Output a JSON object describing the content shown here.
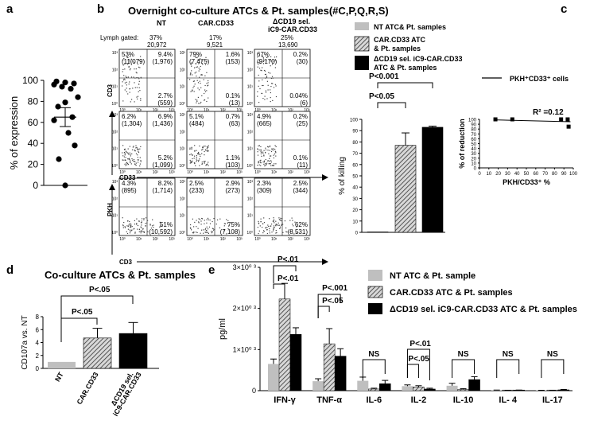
{
  "panels": {
    "a": {
      "label": "a"
    },
    "b": {
      "label": "b",
      "title": "Overnight co-culture ATCs & Pt. samples(#C,P,Q,R,S)"
    },
    "c": {
      "label": "c"
    },
    "d": {
      "label": "d",
      "title": "Co-culture ATCs & Pt. samples"
    },
    "e": {
      "label": "e"
    }
  },
  "flow": {
    "col_headers": [
      "NT",
      "CAR.CD33",
      "ΔCD19 sel.",
      "iC9-CAR.CD33"
    ],
    "gate_label": "Lymph gated:",
    "gate_pct": [
      "37%",
      "17%",
      "25%"
    ],
    "gate_counts": [
      "20,972",
      "9,521",
      "13,690"
    ],
    "row1": [
      {
        "ul": "53%",
        "ulc": "(11,079)",
        "ur": "9.4%",
        "urc": "(1,976)",
        "lr": "2.7%",
        "lrc": "(559)"
      },
      {
        "ul": "79%",
        "ulc": "(7,475)",
        "ur": "1.6%",
        "urc": "(153)",
        "lr": "0.1%",
        "lrc": "(13)"
      },
      {
        "ul": "67%",
        "ulc": "(9,170)",
        "ur": "0.2%",
        "urc": "(30)",
        "lr": "0.04%",
        "lrc": "(6)"
      }
    ],
    "row2": [
      {
        "ul": "6.2%",
        "ulc": "(1,304)",
        "ur": "6.9%",
        "urc": "(1,436)",
        "lr": "5.2%",
        "lrc": "(1,099)"
      },
      {
        "ul": "5.1%",
        "ulc": "(484)",
        "ur": "0.7%",
        "urc": "(63)",
        "lr": "1.1%",
        "lrc": "(103)"
      },
      {
        "ul": "4.9%",
        "ulc": "(665)",
        "ur": "0.2%",
        "urc": "(25)",
        "lr": "0.1%",
        "lrc": "(11)"
      }
    ],
    "row3": [
      {
        "ul": "4.3%",
        "ulc": "(895)",
        "ur": "8.2%",
        "urc": "(1,714)",
        "lr": "51%",
        "lrc": "(10,592)"
      },
      {
        "ul": "2.5%",
        "ulc": "(233)",
        "ur": "2.9%",
        "urc": "(273)",
        "lr": "75%",
        "lrc": "(7,108)"
      },
      {
        "ul": "2.3%",
        "ulc": "(309)",
        "ur": "2.5%",
        "urc": "(344)",
        "lr": "62%",
        "lrc": "(8,531)"
      }
    ],
    "axis_labels": {
      "cd3": "CD3",
      "cd33": "CD33",
      "pkh": "PKH",
      "cd3_bottom": "CD3"
    },
    "tick_labels": [
      "10⁰",
      "10¹",
      "10²",
      "10³"
    ]
  },
  "legend_b": {
    "items": [
      {
        "label": "NT ATC& Pt. samples",
        "color": "#bfbfbf",
        "hatch": false
      },
      {
        "label": "CAR.CD33 ATC & Pt. samples",
        "color": "#8c8c8c",
        "hatch": true
      },
      {
        "label": "ΔCD19 sel. iC9-CAR.CD33 ATC & Pt. samples",
        "color": "#000000",
        "hatch": false
      }
    ]
  },
  "legend_e": {
    "items": [
      {
        "label": "NT ATC & Pt. sample",
        "color": "#bfbfbf",
        "hatch": false
      },
      {
        "label": "CAR.CD33 ATC & Pt. samples",
        "color": "#8c8c8c",
        "hatch": true
      },
      {
        "label": "ΔCD19 sel. iC9-CAR.CD33 ATC & Pt. samples",
        "color": "#000000",
        "hatch": false
      }
    ]
  },
  "chart_data": [
    {
      "type": "scatter",
      "panel": "a",
      "ylabel": "% of expression",
      "ylim": [
        0,
        100
      ],
      "yticks": [
        0,
        20,
        40,
        60,
        80,
        100
      ],
      "values": [
        99,
        98,
        97,
        96,
        94,
        92,
        84,
        79,
        75,
        65,
        62,
        50,
        38,
        25,
        0
      ],
      "mean": 65,
      "error": 9
    },
    {
      "type": "bar",
      "panel": "b-killing",
      "ylabel": "% of killing",
      "ylim": [
        0,
        100
      ],
      "yticks": [
        0,
        10,
        20,
        30,
        40,
        50,
        60,
        70,
        80,
        90,
        100
      ],
      "series": [
        {
          "name": "NT ATC& Pt. samples",
          "value": 0,
          "error": 0
        },
        {
          "name": "CAR.CD33 ATC & Pt. samples",
          "value": 77,
          "error": 11
        },
        {
          "name": "ΔCD19 sel. iC9-CAR.CD33 ATC & Pt. samples",
          "value": 93,
          "error": 1
        }
      ],
      "annotations": [
        "P<0.001",
        "P<0.05"
      ]
    },
    {
      "type": "scatter",
      "panel": "c",
      "legend": "PKH⁺CD33⁺ cells",
      "xlabel": "PKH/CD33⁺ %",
      "ylabel": "% of reduction",
      "xlim": [
        0,
        100
      ],
      "ylim": [
        0,
        100
      ],
      "xticks": [
        0,
        10,
        20,
        30,
        40,
        50,
        60,
        70,
        80,
        90,
        100
      ],
      "yticks": [
        0,
        10,
        20,
        30,
        40,
        50,
        60,
        70,
        80,
        90,
        100
      ],
      "x": [
        17,
        35,
        87,
        94,
        95
      ],
      "y": [
        100,
        100,
        100,
        100,
        85
      ],
      "fit": {
        "x": [
          15,
          97
        ],
        "y": [
          99,
          95
        ]
      },
      "r2_label": "R² =0.12"
    },
    {
      "type": "bar",
      "panel": "d",
      "ylabel": "CD107a vs. NT",
      "ylim": [
        0,
        8
      ],
      "yticks": [
        0,
        2,
        4,
        6,
        8
      ],
      "categories": [
        "NT",
        "CAR.CD33",
        "ΔCD19 sel. iC9-CAR.CD33"
      ],
      "values": [
        1.0,
        4.7,
        5.4
      ],
      "errors": [
        0,
        1.5,
        1.7
      ],
      "annotations": [
        "P<.05",
        "P<.05"
      ]
    },
    {
      "type": "bar",
      "panel": "e",
      "ylabel": "pg/ml",
      "ylim": [
        0,
        3000
      ],
      "yticks": [
        0,
        1000,
        2000,
        3000
      ],
      "ytick_labels": [
        "0",
        "1×10⁰ ³",
        "2×10⁰ ³",
        "3×10⁰ ³"
      ],
      "categories": [
        "IFN-γ",
        "TNF-α",
        "IL-6",
        "IL-2",
        "IL-10",
        "IL- 4",
        "IL-17"
      ],
      "series": [
        {
          "name": "NT ATC & Pt. sample",
          "values": [
            650,
            230,
            240,
            110,
            120,
            10,
            5
          ],
          "errors": [
            120,
            60,
            90,
            30,
            60,
            5,
            5
          ]
        },
        {
          "name": "CAR.CD33 ATC & Pt. samples",
          "values": [
            2230,
            1140,
            40,
            90,
            30,
            5,
            5
          ],
          "errors": [
            380,
            370,
            20,
            30,
            20,
            5,
            5
          ]
        },
        {
          "name": "ΔCD19 sel. iC9-CAR.CD33 ATC & Pt. samples",
          "values": [
            1370,
            840,
            170,
            40,
            270,
            10,
            20
          ],
          "errors": [
            160,
            180,
            80,
            20,
            70,
            5,
            10
          ]
        }
      ],
      "annotations": [
        "P<.01",
        "P<.01",
        "P<.001",
        "P<.05",
        "NS",
        "P<.01",
        "P<.05",
        "NS",
        "NS",
        "NS"
      ]
    }
  ]
}
